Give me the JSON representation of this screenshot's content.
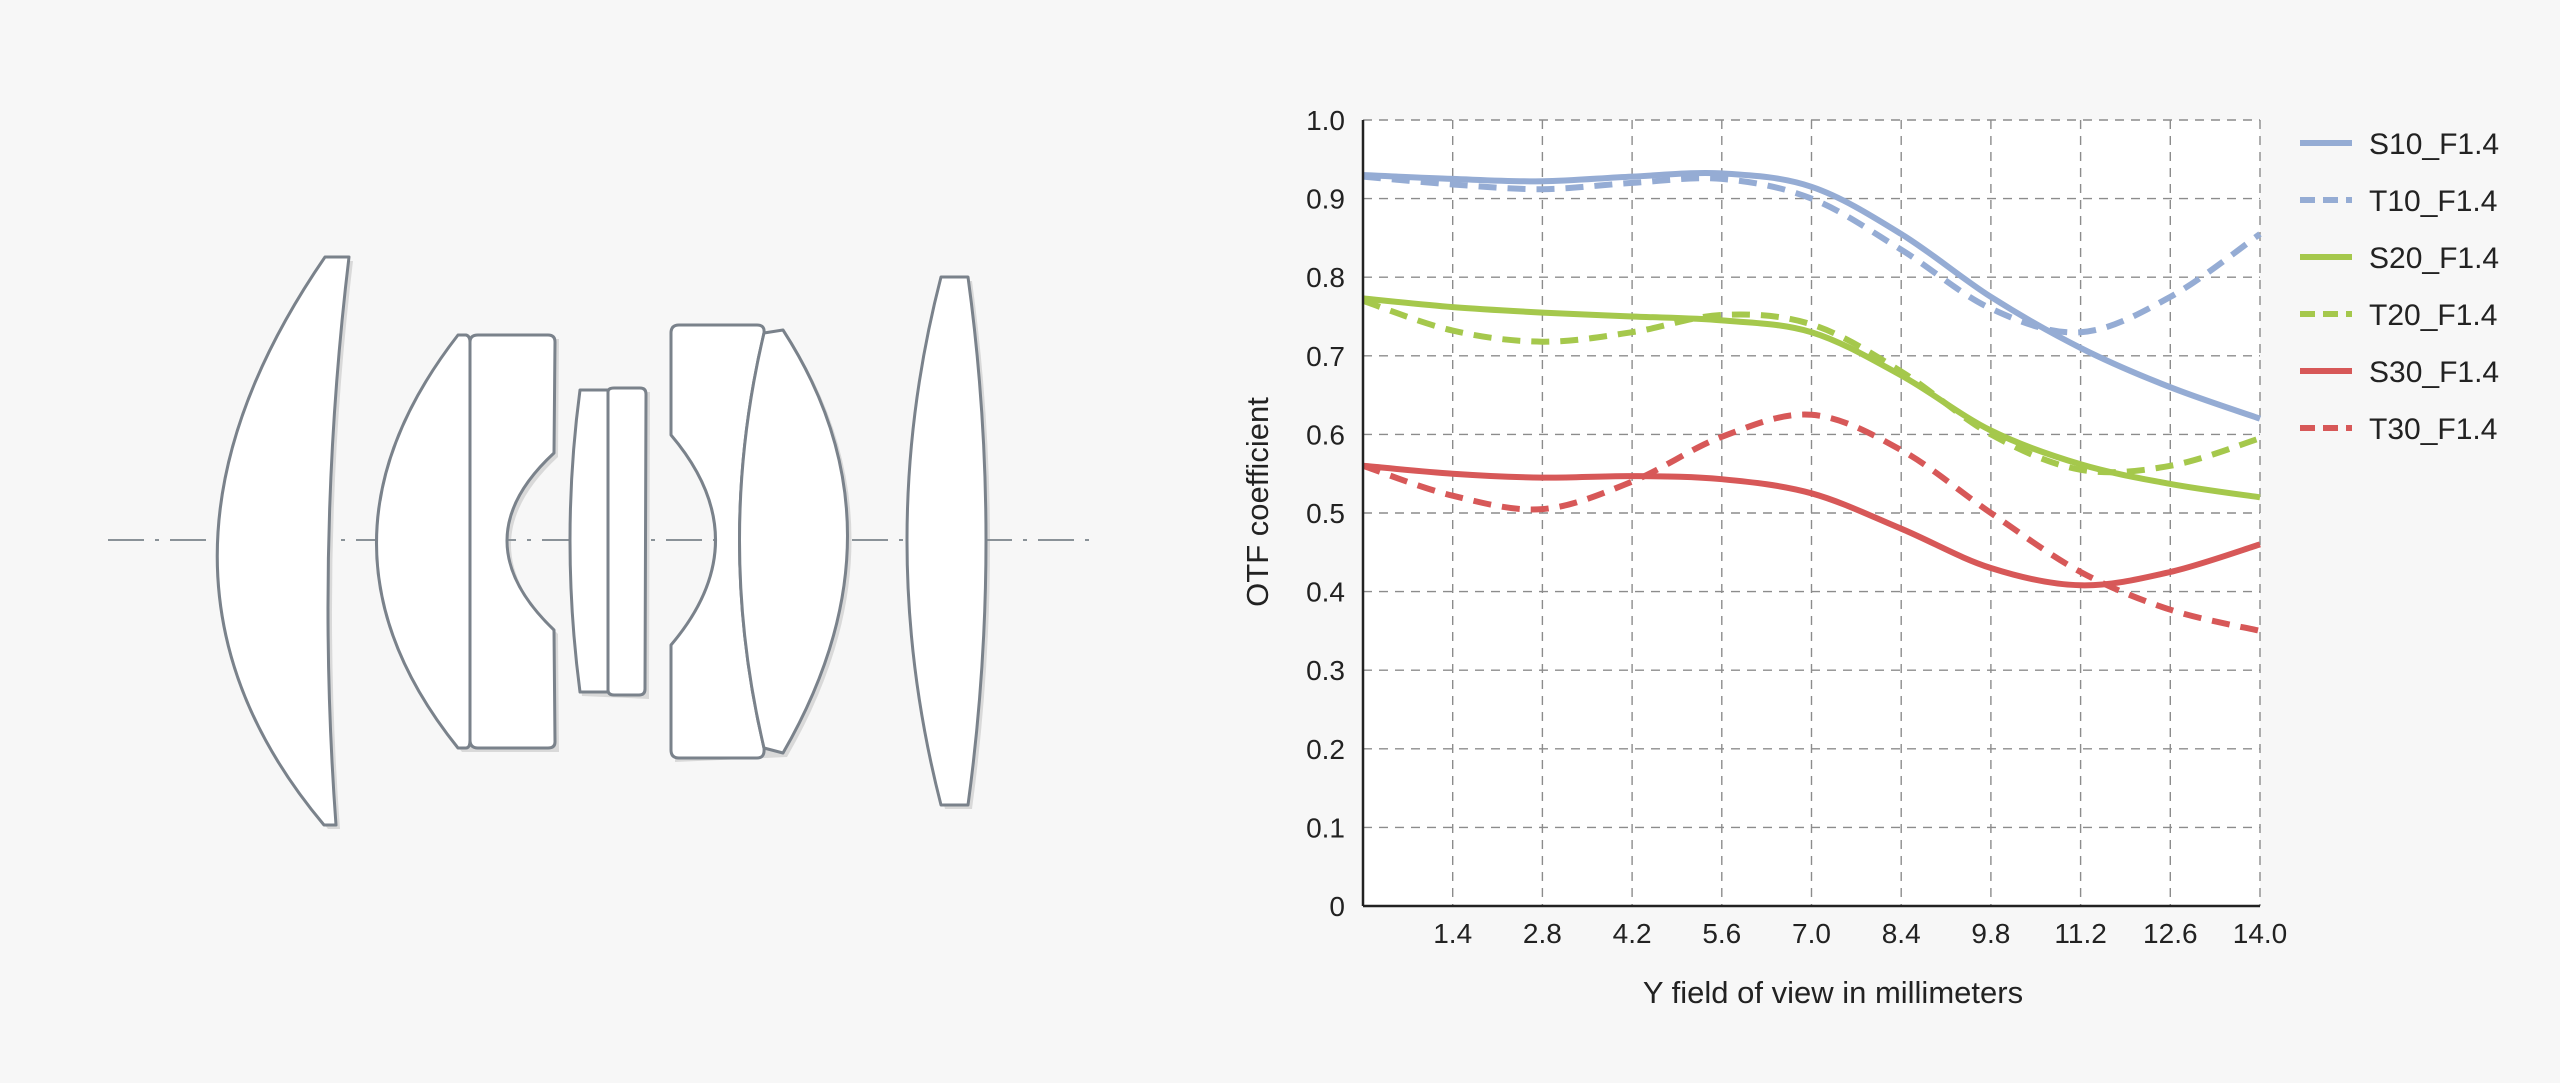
{
  "lens_diagram": {
    "icon": "optical-lens-cross-section-diagram"
  },
  "chart_data": {
    "type": "line",
    "title": "",
    "xlabel": "Y field of view in millimeters",
    "ylabel": "OTF coefficient",
    "xlim": [
      0,
      14.0
    ],
    "ylim": [
      0,
      1.0
    ],
    "x_ticks": [
      1.4,
      2.8,
      4.2,
      5.6,
      7.0,
      8.4,
      9.8,
      11.2,
      12.6,
      14.0
    ],
    "x_tick_labels": [
      "1.4",
      "2.8",
      "4.2",
      "5.6",
      "7.0",
      "8.4",
      "9.8",
      "11.2",
      "12.6",
      "14.0"
    ],
    "y_ticks": [
      0,
      0.1,
      0.2,
      0.3,
      0.4,
      0.5,
      0.6,
      0.7,
      0.8,
      0.9,
      1.0
    ],
    "y_tick_labels": [
      "0",
      "0.1",
      "0.2",
      "0.3",
      "0.4",
      "0.5",
      "0.6",
      "0.7",
      "0.8",
      "0.9",
      "1.0"
    ],
    "grid": true,
    "legend_position": "right",
    "series": [
      {
        "name": "S10_F1.4",
        "color": "#95acd4",
        "style": "solid",
        "x": [
          0,
          1.4,
          2.8,
          4.2,
          5.6,
          7.0,
          8.4,
          9.8,
          11.2,
          12.6,
          14.0
        ],
        "y": [
          0.93,
          0.925,
          0.922,
          0.928,
          0.932,
          0.915,
          0.855,
          0.775,
          0.71,
          0.66,
          0.62
        ]
      },
      {
        "name": "T10_F1.4",
        "color": "#95acd4",
        "style": "dashed",
        "x": [
          0,
          1.4,
          2.8,
          4.2,
          5.6,
          7.0,
          8.4,
          9.8,
          11.2,
          12.6,
          14.0
        ],
        "y": [
          0.928,
          0.918,
          0.912,
          0.92,
          0.925,
          0.9,
          0.835,
          0.76,
          0.73,
          0.775,
          0.855
        ]
      },
      {
        "name": "S20_F1.4",
        "color": "#a5c84c",
        "style": "solid",
        "x": [
          0,
          1.4,
          2.8,
          4.2,
          5.6,
          7.0,
          8.4,
          9.8,
          11.2,
          12.6,
          14.0
        ],
        "y": [
          0.773,
          0.762,
          0.755,
          0.75,
          0.745,
          0.73,
          0.675,
          0.605,
          0.562,
          0.537,
          0.52
        ]
      },
      {
        "name": "T20_F1.4",
        "color": "#a5c84c",
        "style": "dashed",
        "x": [
          0,
          1.4,
          2.8,
          4.2,
          5.6,
          7.0,
          8.4,
          9.8,
          11.2,
          12.6,
          14.0
        ],
        "y": [
          0.77,
          0.732,
          0.718,
          0.73,
          0.752,
          0.74,
          0.68,
          0.6,
          0.555,
          0.56,
          0.595
        ]
      },
      {
        "name": "S30_F1.4",
        "color": "#d75858",
        "style": "solid",
        "x": [
          0,
          1.4,
          2.8,
          4.2,
          5.6,
          7.0,
          8.4,
          9.8,
          11.2,
          12.6,
          14.0
        ],
        "y": [
          0.56,
          0.55,
          0.545,
          0.547,
          0.543,
          0.525,
          0.48,
          0.43,
          0.408,
          0.425,
          0.46
        ]
      },
      {
        "name": "T30_F1.4",
        "color": "#d75858",
        "style": "dashed",
        "x": [
          0,
          1.4,
          2.8,
          4.2,
          5.6,
          7.0,
          8.4,
          9.8,
          11.2,
          12.6,
          14.0
        ],
        "y": [
          0.56,
          0.522,
          0.505,
          0.54,
          0.597,
          0.625,
          0.58,
          0.5,
          0.425,
          0.377,
          0.35
        ]
      }
    ]
  }
}
